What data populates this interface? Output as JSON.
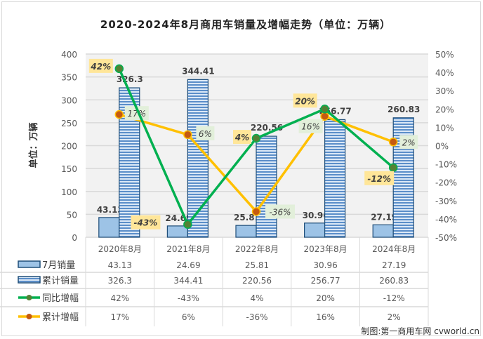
{
  "chart_data": {
    "type": "bar+line",
    "title": "2020-2024年8月商用车销量及增幅走势（单位：万辆）",
    "ylabel": "单位：万辆",
    "ylim": [
      0,
      400
    ],
    "yticks": [
      "0",
      "50",
      "100",
      "150",
      "200",
      "250",
      "300",
      "350",
      "400"
    ],
    "y2lim": [
      -50,
      50
    ],
    "y2ticks": [
      "-50%",
      "-40%",
      "-30%",
      "-20%",
      "-10%",
      "0%",
      "10%",
      "20%",
      "30%",
      "40%",
      "50%"
    ],
    "grid": true,
    "categories": [
      "2020年8月",
      "2021年8月",
      "2022年8月",
      "2023年8月",
      "2024年8月"
    ],
    "series": [
      {
        "name": "7月销量",
        "type": "bar",
        "axis": "left",
        "color": "#9dc3e6",
        "values": [
          43.13,
          24.69,
          25.81,
          30.96,
          27.19
        ],
        "labels": [
          "43.13",
          "24.69",
          "25.81",
          "30.96",
          "27.19"
        ],
        "table": [
          "43.13",
          "24.69",
          "25.81",
          "30.96",
          "27.19"
        ]
      },
      {
        "name": "累计销量",
        "type": "bar",
        "axis": "left",
        "color": "#2e75b6",
        "values": [
          326.3,
          344.41,
          220.56,
          256.77,
          260.83
        ],
        "labels": [
          "326.3",
          "344.41",
          "220.56",
          "256.77",
          "260.83"
        ],
        "table": [
          "326.3",
          "344.41",
          "220.56",
          "256.77",
          "260.83"
        ]
      },
      {
        "name": "同比增幅",
        "type": "line",
        "axis": "right",
        "color": "#00b050",
        "values": [
          42,
          -43,
          4,
          20,
          -12
        ],
        "labels": [
          "42%",
          "-43%",
          "4%",
          "20%",
          "-12%"
        ],
        "table": [
          "42%",
          "-43%",
          "4%",
          "20%",
          "-12%"
        ]
      },
      {
        "name": "累计增幅",
        "type": "line",
        "axis": "right",
        "color": "#ffc000",
        "values": [
          17,
          6,
          -36,
          16,
          2
        ],
        "labels": [
          "17%",
          "6%",
          "-36%",
          "16%",
          "2%"
        ],
        "table": [
          "17%",
          "6%",
          "-36%",
          "16%",
          "2%"
        ]
      }
    ],
    "source": "制图:第一商用车网 cvworld.cn"
  }
}
